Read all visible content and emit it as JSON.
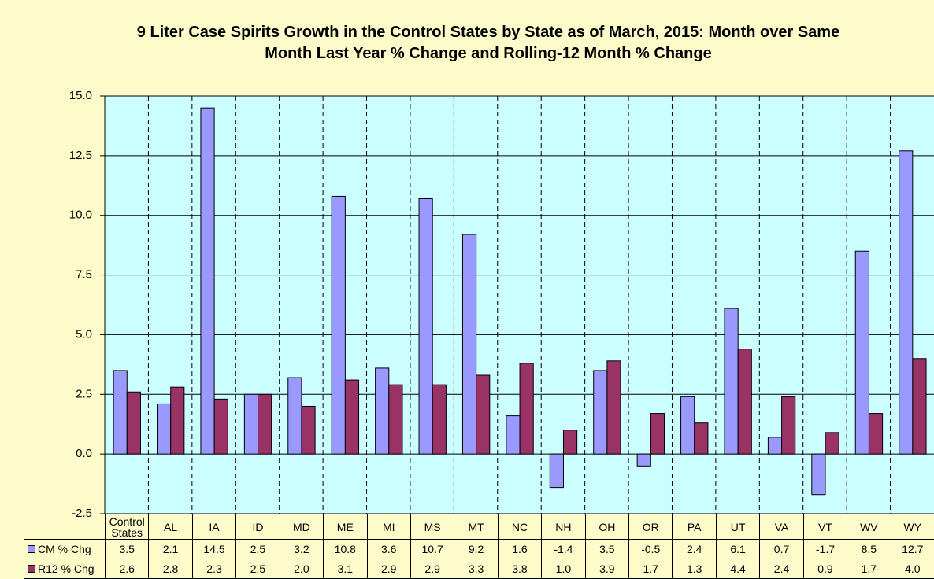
{
  "chart_data": {
    "type": "bar",
    "title": "9 Liter Case Spirits Growth in the Control States by State as of March, 2015: Month over Same Month Last Year % Change and Rolling-12 Month % Change",
    "categories": [
      "Control States",
      "AL",
      "IA",
      "ID",
      "MD",
      "ME",
      "MI",
      "MS",
      "MT",
      "NC",
      "NH",
      "OH",
      "OR",
      "PA",
      "UT",
      "VA",
      "VT",
      "WV",
      "WY"
    ],
    "series": [
      {
        "name": "CM % Chg",
        "color": "#9999ff",
        "values": [
          3.5,
          2.1,
          14.5,
          2.5,
          3.2,
          10.8,
          3.6,
          10.7,
          9.2,
          1.6,
          -1.4,
          3.5,
          -0.5,
          2.4,
          6.1,
          0.7,
          -1.7,
          8.5,
          12.7
        ],
        "value_labels": [
          "3.5",
          "2.1",
          "14.5",
          "2.5",
          "3.2",
          "10.8",
          "3.6",
          "10.7",
          "9.2",
          "1.6",
          "-1.4",
          "3.5",
          "-0.5",
          "2.4",
          "6.1",
          "0.7",
          "-1.7",
          "8.5",
          "12.7"
        ]
      },
      {
        "name": "R12 % Chg",
        "color": "#993366",
        "values": [
          2.6,
          2.8,
          2.3,
          2.5,
          2.0,
          3.1,
          2.9,
          2.9,
          3.3,
          3.8,
          1.0,
          3.9,
          1.7,
          1.3,
          4.4,
          2.4,
          0.9,
          1.7,
          4.0
        ],
        "value_labels": [
          "2.6",
          "2.8",
          "2.3",
          "2.5",
          "2.0",
          "3.1",
          "2.9",
          "2.9",
          "3.3",
          "3.8",
          "1.0",
          "3.9",
          "1.7",
          "1.3",
          "4.4",
          "2.4",
          "0.9",
          "1.7",
          "4.0"
        ]
      }
    ],
    "ylim": [
      -2.5,
      15
    ],
    "yticks": [
      -2.5,
      {
        "value": 0,
        "label": "0.0"
      },
      2.5,
      {
        "value": 5,
        "label": "5.0"
      },
      7.5,
      {
        "value": 10,
        "label": "10.0"
      },
      12.5,
      {
        "value": 15,
        "label": "15.0"
      }
    ],
    "grid": true
  }
}
